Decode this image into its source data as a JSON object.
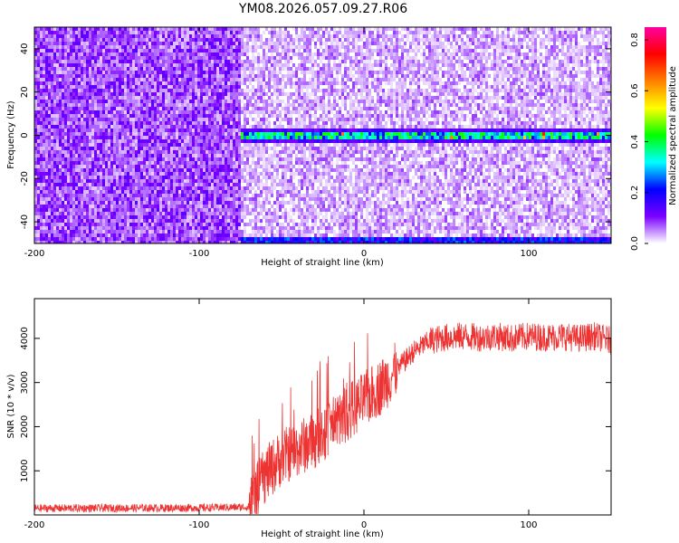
{
  "title": "YM08.2026.057.09.27.R06",
  "chart_data": [
    {
      "type": "heatmap",
      "xlabel": "Height of straight line (km)",
      "ylabel": "Frequency (Hz)",
      "xlim": [
        -200,
        150
      ],
      "ylim": [
        -50,
        50
      ],
      "xticks": [
        -200,
        -100,
        0,
        100
      ],
      "xtick_labels": [
        "-200",
        "-100",
        "0",
        "100"
      ],
      "yticks": [
        -40,
        -20,
        0,
        20,
        40
      ],
      "ytick_labels": [
        "-40",
        "-20",
        "0",
        "20",
        "40"
      ],
      "colorbar": {
        "label": "Normalized spectral amplitude",
        "range": [
          0,
          0.85
        ],
        "ticks": [
          0,
          0.2,
          0.4,
          0.6,
          0.8
        ],
        "tick_labels": [
          "0.0",
          "0.2",
          "0.4",
          "0.6",
          "0.8"
        ],
        "palette": [
          "#ffffff",
          "#7a00ff",
          "#0000ff",
          "#00ffff",
          "#00ff00",
          "#ffff00",
          "#ff8000",
          "#ff0000",
          "#ff00a0"
        ]
      },
      "features": {
        "noise_onset_x": -75,
        "signal_frequency": 0,
        "signal_x_range": [
          -75,
          150
        ],
        "edge_frequency": -50,
        "edge_x_range": [
          -75,
          150
        ]
      },
      "grid": false,
      "legend": "none"
    },
    {
      "type": "line",
      "xlabel": "Height of straight line (km)",
      "ylabel": "SNR (10 * v/v)",
      "xlim": [
        -200,
        150
      ],
      "ylim": [
        0,
        4900
      ],
      "xticks": [
        -200,
        -100,
        0,
        100
      ],
      "xtick_labels": [
        "-200",
        "-100",
        "0",
        "100"
      ],
      "yticks": [
        1000,
        2000,
        3000,
        4000
      ],
      "ytick_labels": [
        "1000",
        "2000",
        "3000",
        "4000"
      ],
      "series": [
        {
          "color": "#ee3333",
          "profile_x": [
            -200,
            -100,
            -70,
            -60,
            -50,
            -40,
            -30,
            -20,
            -10,
            0,
            10,
            20,
            30,
            40,
            50,
            60,
            70,
            80,
            90,
            100,
            110,
            120,
            130,
            140,
            150
          ],
          "profile_y": [
            150,
            160,
            180,
            900,
            1300,
            1500,
            1700,
            2000,
            2300,
            2600,
            2900,
            3300,
            3700,
            3950,
            4020,
            4050,
            4020,
            4050,
            4000,
            4050,
            4020,
            4050,
            4000,
            4050,
            3950
          ]
        }
      ],
      "grid": false,
      "legend": "none"
    }
  ]
}
